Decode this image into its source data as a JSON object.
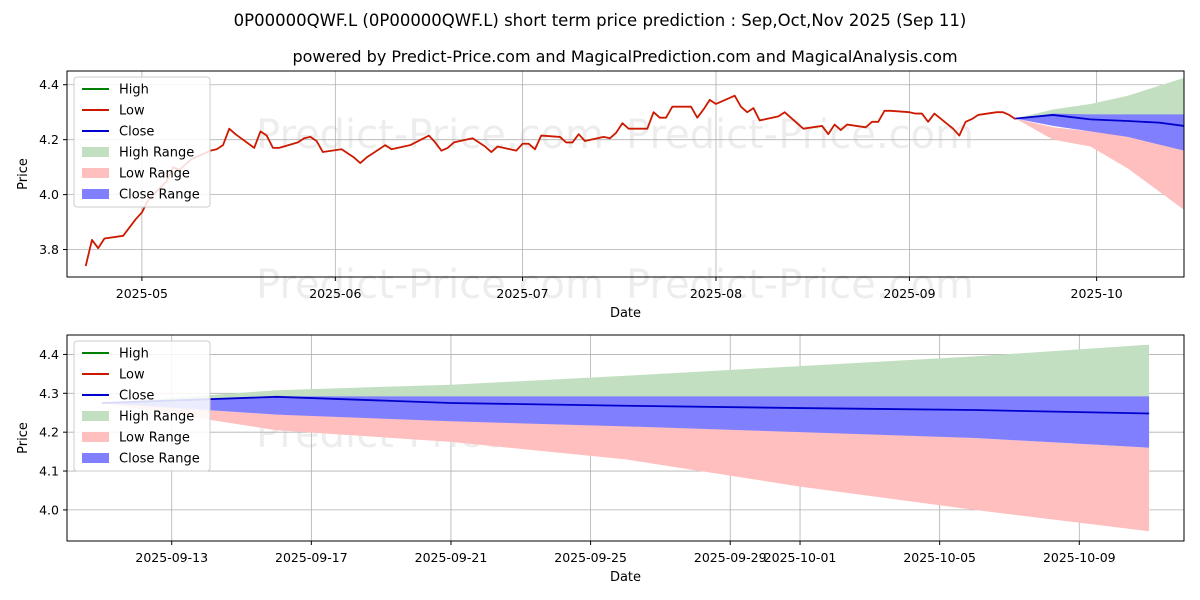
{
  "title": "0P00000QWF.L (0P00000QWF.L) short term price prediction : Sep,Oct,Nov 2025 (Sep 11)",
  "subtitle": "powered by Predict-Price.com and MagicalPrediction.com and MagicalAnalysis.com",
  "watermark": "Predict-Price.com",
  "colors": {
    "high": "#008000",
    "low": "#cc1a00",
    "close": "#0000cc",
    "high_range": "#c2dfc2",
    "low_range": "#ffbfbf",
    "close_range": "#8080ff"
  },
  "chart_data": [
    {
      "type": "line",
      "xlabel": "Date",
      "ylabel": "Price",
      "xlim": [
        "2025-04-19",
        "2025-10-15"
      ],
      "ylim": [
        3.7,
        4.45
      ],
      "xticks": [
        "2025-05-01",
        "2025-06-01",
        "2025-07-01",
        "2025-08-01",
        "2025-09-01",
        "2025-10-01"
      ],
      "xtick_labels": [
        "2025-05",
        "2025-06",
        "2025-07",
        "2025-08",
        "2025-09",
        "2025-10"
      ],
      "yticks": [
        3.8,
        4.0,
        4.2,
        4.4
      ],
      "ytick_labels": [
        "3.8",
        "4.0",
        "4.2",
        "4.4"
      ],
      "grid": true,
      "legend": {
        "position": "upper-left",
        "entries": [
          "High",
          "Low",
          "Close",
          "High Range",
          "Low Range",
          "Close Range"
        ]
      },
      "series": [
        {
          "name": "Low",
          "points": [
            [
              "2025-04-22",
              3.74
            ],
            [
              "2025-04-23",
              3.835
            ],
            [
              "2025-04-24",
              3.805
            ],
            [
              "2025-04-25",
              3.84
            ],
            [
              "2025-04-28",
              3.85
            ],
            [
              "2025-04-29",
              3.88
            ],
            [
              "2025-04-30",
              3.91
            ],
            [
              "2025-05-01",
              3.935
            ],
            [
              "2025-05-02",
              3.98
            ],
            [
              "2025-05-05",
              4.05
            ],
            [
              "2025-05-06",
              4.1
            ],
            [
              "2025-05-07",
              4.09
            ],
            [
              "2025-05-08",
              4.11
            ],
            [
              "2025-05-09",
              4.13
            ],
            [
              "2025-05-12",
              4.16
            ],
            [
              "2025-05-13",
              4.165
            ],
            [
              "2025-05-14",
              4.18
            ],
            [
              "2025-05-15",
              4.24
            ],
            [
              "2025-05-16",
              4.22
            ],
            [
              "2025-05-19",
              4.17
            ],
            [
              "2025-05-20",
              4.23
            ],
            [
              "2025-05-21",
              4.215
            ],
            [
              "2025-05-22",
              4.17
            ],
            [
              "2025-05-23",
              4.17
            ],
            [
              "2025-05-26",
              4.19
            ],
            [
              "2025-05-27",
              4.205
            ],
            [
              "2025-05-28",
              4.21
            ],
            [
              "2025-05-29",
              4.195
            ],
            [
              "2025-05-30",
              4.155
            ],
            [
              "2025-06-02",
              4.165
            ],
            [
              "2025-06-03",
              4.15
            ],
            [
              "2025-06-04",
              4.135
            ],
            [
              "2025-06-05",
              4.115
            ],
            [
              "2025-06-06",
              4.135
            ],
            [
              "2025-06-09",
              4.18
            ],
            [
              "2025-06-10",
              4.165
            ],
            [
              "2025-06-11",
              4.17
            ],
            [
              "2025-06-12",
              4.175
            ],
            [
              "2025-06-13",
              4.18
            ],
            [
              "2025-06-16",
              4.215
            ],
            [
              "2025-06-17",
              4.19
            ],
            [
              "2025-06-18",
              4.16
            ],
            [
              "2025-06-19",
              4.17
            ],
            [
              "2025-06-20",
              4.19
            ],
            [
              "2025-06-23",
              4.205
            ],
            [
              "2025-06-24",
              4.19
            ],
            [
              "2025-06-25",
              4.175
            ],
            [
              "2025-06-26",
              4.155
            ],
            [
              "2025-06-27",
              4.175
            ],
            [
              "2025-06-30",
              4.16
            ],
            [
              "2025-07-01",
              4.185
            ],
            [
              "2025-07-02",
              4.185
            ],
            [
              "2025-07-03",
              4.165
            ],
            [
              "2025-07-04",
              4.215
            ],
            [
              "2025-07-07",
              4.21
            ],
            [
              "2025-07-08",
              4.19
            ],
            [
              "2025-07-09",
              4.19
            ],
            [
              "2025-07-10",
              4.22
            ],
            [
              "2025-07-11",
              4.195
            ],
            [
              "2025-07-14",
              4.21
            ],
            [
              "2025-07-15",
              4.205
            ],
            [
              "2025-07-16",
              4.225
            ],
            [
              "2025-07-17",
              4.26
            ],
            [
              "2025-07-18",
              4.24
            ],
            [
              "2025-07-21",
              4.24
            ],
            [
              "2025-07-22",
              4.3
            ],
            [
              "2025-07-23",
              4.28
            ],
            [
              "2025-07-24",
              4.28
            ],
            [
              "2025-07-25",
              4.32
            ],
            [
              "2025-07-28",
              4.32
            ],
            [
              "2025-07-29",
              4.28
            ],
            [
              "2025-07-30",
              4.31
            ],
            [
              "2025-07-31",
              4.345
            ],
            [
              "2025-08-01",
              4.33
            ],
            [
              "2025-08-04",
              4.36
            ],
            [
              "2025-08-05",
              4.32
            ],
            [
              "2025-08-06",
              4.3
            ],
            [
              "2025-08-07",
              4.315
            ],
            [
              "2025-08-08",
              4.27
            ],
            [
              "2025-08-11",
              4.285
            ],
            [
              "2025-08-12",
              4.3
            ],
            [
              "2025-08-13",
              4.28
            ],
            [
              "2025-08-14",
              4.26
            ],
            [
              "2025-08-15",
              4.24
            ],
            [
              "2025-08-18",
              4.25
            ],
            [
              "2025-08-19",
              4.22
            ],
            [
              "2025-08-20",
              4.255
            ],
            [
              "2025-08-21",
              4.235
            ],
            [
              "2025-08-22",
              4.255
            ],
            [
              "2025-08-25",
              4.245
            ],
            [
              "2025-08-26",
              4.265
            ],
            [
              "2025-08-27",
              4.265
            ],
            [
              "2025-08-28",
              4.305
            ],
            [
              "2025-08-29",
              4.305
            ],
            [
              "2025-09-01",
              4.3
            ],
            [
              "2025-09-02",
              4.295
            ],
            [
              "2025-09-03",
              4.295
            ],
            [
              "2025-09-04",
              4.265
            ],
            [
              "2025-09-05",
              4.295
            ],
            [
              "2025-09-08",
              4.24
            ],
            [
              "2025-09-09",
              4.215
            ],
            [
              "2025-09-10",
              4.265
            ],
            [
              "2025-09-11",
              4.275
            ],
            [
              "2025-09-12",
              4.29
            ],
            [
              "2025-09-15",
              4.3
            ],
            [
              "2025-09-16",
              4.3
            ],
            [
              "2025-09-17",
              4.29
            ],
            [
              "2025-09-18",
              4.275
            ]
          ]
        },
        {
          "name": "Close",
          "points": [
            [
              "2025-09-18",
              4.277
            ],
            [
              "2025-09-24",
              4.29
            ],
            [
              "2025-09-30",
              4.274
            ],
            [
              "2025-10-06",
              4.268
            ],
            [
              "2025-10-11",
              4.262
            ],
            [
              "2025-10-15",
              4.25
            ]
          ]
        }
      ],
      "ranges": [
        {
          "name": "High Range",
          "points": [
            [
              "2025-09-18",
              4.277,
              4.277
            ],
            [
              "2025-09-24",
              4.31,
              4.29
            ],
            [
              "2025-09-30",
              4.33,
              4.29
            ],
            [
              "2025-10-06",
              4.36,
              4.29
            ],
            [
              "2025-10-15",
              4.425,
              4.29
            ]
          ]
        },
        {
          "name": "Low Range",
          "points": [
            [
              "2025-09-18",
              4.277,
              4.277
            ],
            [
              "2025-09-24",
              4.245,
              4.2
            ],
            [
              "2025-09-30",
              4.23,
              4.175
            ],
            [
              "2025-10-06",
              4.215,
              4.095
            ],
            [
              "2025-10-15",
              4.16,
              3.945
            ]
          ]
        },
        {
          "name": "Close Range",
          "points": [
            [
              "2025-09-18",
              4.277,
              4.277
            ],
            [
              "2025-09-24",
              4.295,
              4.25
            ],
            [
              "2025-09-30",
              4.292,
              4.23
            ],
            [
              "2025-10-06",
              4.292,
              4.21
            ],
            [
              "2025-10-15",
              4.292,
              4.16
            ]
          ]
        }
      ]
    },
    {
      "type": "line",
      "xlabel": "Date",
      "ylabel": "Price",
      "xlim": [
        "2025-09-10",
        "2025-10-12"
      ],
      "ylim": [
        3.92,
        4.45
      ],
      "xticks": [
        "2025-09-13",
        "2025-09-17",
        "2025-09-21",
        "2025-09-25",
        "2025-09-29",
        "2025-10-01",
        "2025-10-05",
        "2025-10-09"
      ],
      "xtick_labels": [
        "2025-09-13",
        "2025-09-17",
        "2025-09-21",
        "2025-09-25",
        "2025-09-29",
        "2025-10-01",
        "2025-10-05",
        "2025-10-09"
      ],
      "yticks": [
        4.0,
        4.1,
        4.2,
        4.3,
        4.4
      ],
      "ytick_labels": [
        "4.0",
        "4.1",
        "4.2",
        "4.3",
        "4.4"
      ],
      "grid": true,
      "legend": {
        "position": "upper-left",
        "entries": [
          "High",
          "Low",
          "Close",
          "High Range",
          "Low Range",
          "Close Range"
        ]
      },
      "series": [
        {
          "name": "Close",
          "points": [
            [
              "2025-09-11",
              4.275
            ],
            [
              "2025-09-16",
              4.291
            ],
            [
              "2025-09-21",
              4.275
            ],
            [
              "2025-09-26",
              4.268
            ],
            [
              "2025-10-01",
              4.262
            ],
            [
              "2025-10-06",
              4.257
            ],
            [
              "2025-10-11",
              4.248
            ]
          ]
        }
      ],
      "ranges": [
        {
          "name": "High Range",
          "points": [
            [
              "2025-09-11",
              4.275,
              4.275
            ],
            [
              "2025-09-16",
              4.308,
              4.29
            ],
            [
              "2025-09-21",
              4.322,
              4.29
            ],
            [
              "2025-09-26",
              4.345,
              4.29
            ],
            [
              "2025-10-01",
              4.37,
              4.29
            ],
            [
              "2025-10-06",
              4.395,
              4.29
            ],
            [
              "2025-10-11",
              4.425,
              4.29
            ]
          ]
        },
        {
          "name": "Low Range",
          "points": [
            [
              "2025-09-11",
              4.275,
              4.275
            ],
            [
              "2025-09-16",
              4.245,
              4.205
            ],
            [
              "2025-09-21",
              4.235,
              4.175
            ],
            [
              "2025-09-26",
              4.222,
              4.13
            ],
            [
              "2025-10-01",
              4.202,
              4.06
            ],
            [
              "2025-10-06",
              4.185,
              4.0
            ],
            [
              "2025-10-11",
              4.16,
              3.945
            ]
          ]
        },
        {
          "name": "Close Range",
          "points": [
            [
              "2025-09-11",
              4.275,
              4.275
            ],
            [
              "2025-09-16",
              4.292,
              4.245
            ],
            [
              "2025-09-21",
              4.292,
              4.228
            ],
            [
              "2025-09-26",
              4.292,
              4.215
            ],
            [
              "2025-10-01",
              4.292,
              4.2
            ],
            [
              "2025-10-06",
              4.292,
              4.185
            ],
            [
              "2025-10-11",
              4.292,
              4.16
            ]
          ]
        }
      ]
    }
  ]
}
